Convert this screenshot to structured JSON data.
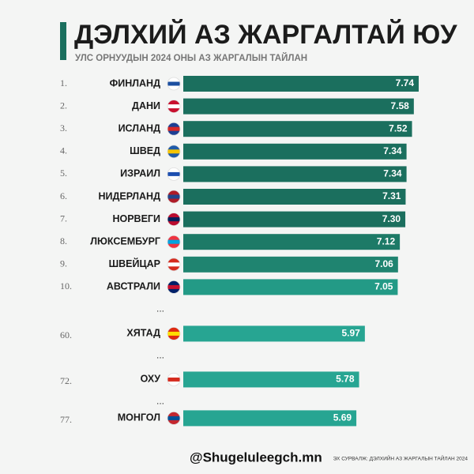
{
  "chart_data": {
    "type": "bar",
    "title": "ДЭЛХИЙ АЗ ЖАРГАЛТАЙ ЮУ",
    "subtitle": "УЛС ОРНУУДЫН 2024 ОНЫ АЗ ЖАРГАЛЫН ТАЙЛАН",
    "ranks": [
      "1.",
      "2.",
      "3.",
      "4.",
      "5.",
      "6.",
      "7.",
      "8.",
      "9.",
      "10.",
      "60.",
      "72.",
      "77."
    ],
    "categories": [
      "ФИНЛАНД",
      "ДАНИ",
      "ИСЛАНД",
      "ШВЕД",
      "ИЗРАИЛ",
      "НИДЕРЛАНД",
      "НОРВЕГИ",
      "ЛЮКСЕМБУРГ",
      "ШВЕЙЦАР",
      "АВСТРАЛИ",
      "ХЯТАД",
      "ОХУ",
      "МОНГОЛ"
    ],
    "values": [
      7.74,
      7.58,
      7.52,
      7.34,
      7.34,
      7.31,
      7.3,
      7.12,
      7.06,
      7.05,
      5.97,
      5.78,
      5.69
    ],
    "value_labels": [
      "7.74",
      "7.58",
      "7.52",
      "7.34",
      "7.34",
      "7.31",
      "7.30",
      "7.12",
      "7.06",
      "7.05",
      "5.97",
      "5.78",
      "5.69"
    ],
    "colors": [
      "#1b6f5e",
      "#1b6f5e",
      "#1b6f5e",
      "#1b6f5e",
      "#1b6f5e",
      "#1b6f5e",
      "#1b6f5e",
      "#1d7a67",
      "#1f8470",
      "#239a86",
      "#27a592",
      "#27a592",
      "#27a592"
    ],
    "ellipsis": "...",
    "handle": "@Shugeluleegch.mn",
    "source": "ЭХ СУРВАЛЖ: ДЭЛХИЙН АЗ ЖАРГАЛЫН ТАЙЛАН 2024"
  }
}
